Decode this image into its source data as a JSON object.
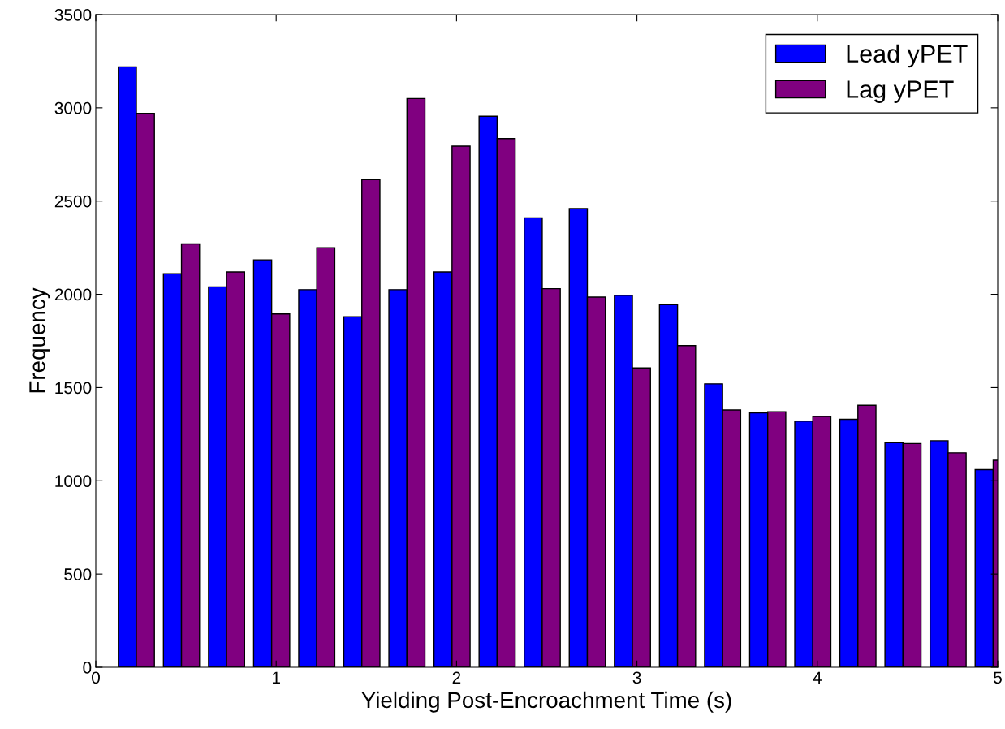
{
  "chart_data": {
    "type": "histogram",
    "xlabel": "Yielding Post-Encroachment Time (s)",
    "ylabel": "Frequency",
    "bins": [
      0.1,
      0.35,
      0.6,
      0.85,
      1.1,
      1.35,
      1.6,
      1.85,
      2.1,
      2.35,
      2.6,
      2.85,
      3.1,
      3.35,
      3.6,
      3.85,
      4.1,
      4.35,
      4.6,
      4.85,
      5.1
    ],
    "series": [
      {
        "name": "Lead yPET",
        "color": "#0000ff",
        "values": [
          3220,
          2110,
          2040,
          2185,
          2025,
          1880,
          2025,
          2120,
          2955,
          2410,
          2460,
          1995,
          1945,
          1520,
          1365,
          1320,
          1330,
          1205,
          1215,
          1060
        ]
      },
      {
        "name": "Lag yPET",
        "color": "#800080",
        "values": [
          2970,
          2270,
          2120,
          1895,
          2250,
          2615,
          3050,
          2795,
          2835,
          2030,
          1985,
          1605,
          1725,
          1380,
          1370,
          1345,
          1405,
          1200,
          1150,
          1110
        ]
      }
    ],
    "xlim": [
      0,
      5
    ],
    "xticks": [
      0,
      1,
      2,
      3,
      4,
      5
    ],
    "ylim": [
      0,
      3500
    ],
    "yticks": [
      0,
      500,
      1000,
      1500,
      2000,
      2500,
      3000,
      3500
    ],
    "grid": false,
    "legend": "top right"
  }
}
